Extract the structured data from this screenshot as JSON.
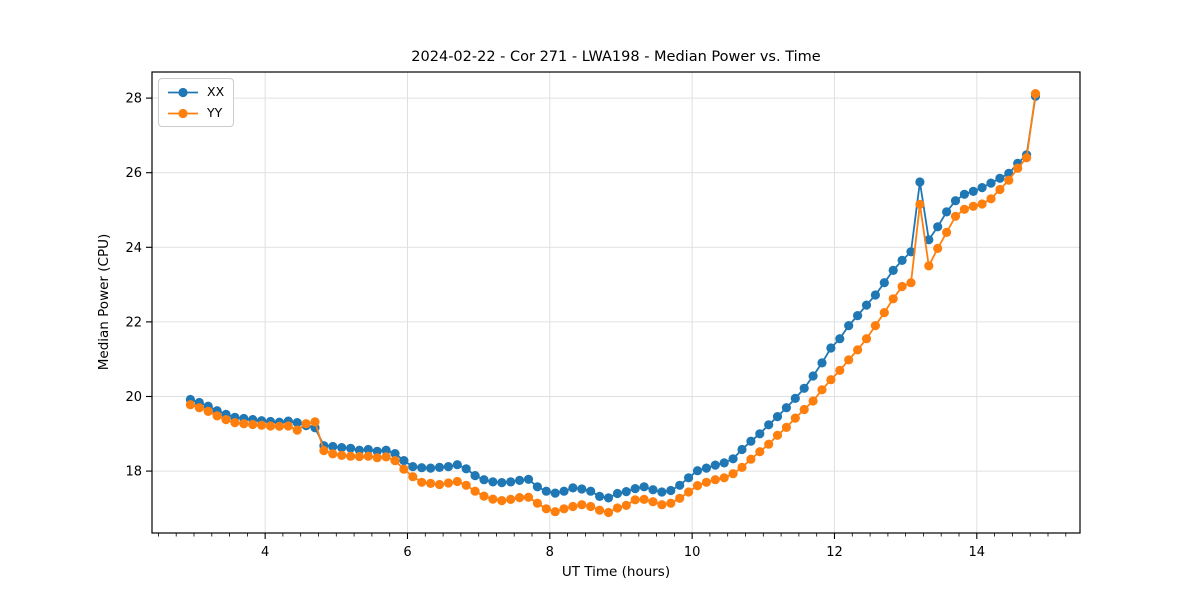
{
  "chart_data": {
    "type": "line",
    "title": "2024-02-22 - Cor 271 - LWA198 - Median Power vs. Time",
    "xlabel": "UT Time (hours)",
    "ylabel": "Median Power (CPU)",
    "xlim": [
      2.41,
      15.45
    ],
    "ylim": [
      16.34,
      28.7
    ],
    "x_major_ticks": [
      4,
      6,
      8,
      10,
      12,
      14
    ],
    "x_minor_tick_step": 0.25,
    "y_major_ticks": [
      18,
      20,
      22,
      24,
      26,
      28
    ],
    "grid": true,
    "grid_color": "#e0e0e0",
    "legend_position": "upper-left",
    "x": [
      2.95,
      3.075,
      3.2,
      3.325,
      3.45,
      3.575,
      3.7,
      3.825,
      3.95,
      4.075,
      4.2,
      4.325,
      4.45,
      4.575,
      4.7,
      4.825,
      4.95,
      5.075,
      5.2,
      5.325,
      5.45,
      5.575,
      5.7,
      5.825,
      5.95,
      6.075,
      6.2,
      6.325,
      6.45,
      6.575,
      6.7,
      6.825,
      6.95,
      7.075,
      7.2,
      7.325,
      7.45,
      7.575,
      7.7,
      7.825,
      7.95,
      8.075,
      8.2,
      8.325,
      8.45,
      8.575,
      8.7,
      8.825,
      8.95,
      9.075,
      9.2,
      9.325,
      9.45,
      9.575,
      9.7,
      9.825,
      9.95,
      10.075,
      10.2,
      10.325,
      10.45,
      10.575,
      10.7,
      10.825,
      10.95,
      11.075,
      11.2,
      11.325,
      11.45,
      11.575,
      11.7,
      11.825,
      11.95,
      12.075,
      12.2,
      12.325,
      12.45,
      12.575,
      12.7,
      12.825,
      12.95,
      13.075,
      13.2,
      13.325,
      13.45,
      13.575,
      13.7,
      13.825,
      13.95,
      14.075,
      14.2,
      14.325,
      14.45,
      14.575,
      14.7,
      14.825
    ],
    "series": [
      {
        "name": "XX",
        "color": "#1f77b4",
        "values": [
          19.92,
          19.84,
          19.74,
          19.62,
          19.52,
          19.44,
          19.41,
          19.38,
          19.35,
          19.33,
          19.31,
          19.34,
          19.3,
          19.22,
          19.16,
          18.68,
          18.66,
          18.63,
          18.61,
          18.56,
          18.58,
          18.53,
          18.56,
          18.47,
          18.28,
          18.12,
          18.09,
          18.08,
          18.1,
          18.12,
          18.17,
          18.06,
          17.88,
          17.77,
          17.71,
          17.69,
          17.71,
          17.75,
          17.78,
          17.58,
          17.46,
          17.41,
          17.46,
          17.55,
          17.52,
          17.46,
          17.32,
          17.28,
          17.4,
          17.45,
          17.53,
          17.58,
          17.5,
          17.44,
          17.48,
          17.62,
          17.82,
          18.01,
          18.08,
          18.16,
          18.22,
          18.33,
          18.58,
          18.8,
          19.0,
          19.24,
          19.46,
          19.7,
          19.95,
          20.22,
          20.55,
          20.9,
          21.3,
          21.55,
          21.9,
          22.17,
          22.45,
          22.72,
          23.05,
          23.38,
          23.65,
          23.88,
          25.75,
          24.2,
          24.55,
          24.95,
          25.25,
          25.42,
          25.5,
          25.6,
          25.72,
          25.85,
          25.98,
          26.25,
          26.48,
          28.05
        ]
      },
      {
        "name": "YY",
        "color": "#ff7f0e",
        "values": [
          19.78,
          19.7,
          19.6,
          19.48,
          19.38,
          19.3,
          19.27,
          19.25,
          19.23,
          19.21,
          19.2,
          19.21,
          19.1,
          19.27,
          19.32,
          18.55,
          18.46,
          18.42,
          18.4,
          18.39,
          18.4,
          18.36,
          18.38,
          18.28,
          18.05,
          17.85,
          17.7,
          17.67,
          17.64,
          17.68,
          17.72,
          17.62,
          17.46,
          17.33,
          17.25,
          17.21,
          17.24,
          17.29,
          17.3,
          17.14,
          16.99,
          16.91,
          16.99,
          17.05,
          17.1,
          17.05,
          16.95,
          16.89,
          17.01,
          17.08,
          17.23,
          17.24,
          17.18,
          17.1,
          17.14,
          17.27,
          17.44,
          17.61,
          17.7,
          17.77,
          17.82,
          17.93,
          18.1,
          18.32,
          18.52,
          18.72,
          18.96,
          19.17,
          19.42,
          19.65,
          19.88,
          20.18,
          20.45,
          20.7,
          20.98,
          21.25,
          21.55,
          21.9,
          22.25,
          22.62,
          22.95,
          23.05,
          25.15,
          23.5,
          23.97,
          24.4,
          24.83,
          25.02,
          25.1,
          25.16,
          25.3,
          25.55,
          25.8,
          26.12,
          26.4,
          28.12
        ]
      }
    ]
  }
}
